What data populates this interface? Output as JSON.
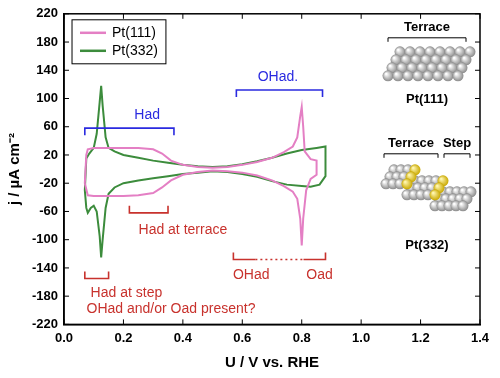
{
  "chart_data": {
    "type": "line",
    "x_label": "U / V vs. RHE",
    "y_label": "j / µA cm⁻²",
    "xlim": [
      0,
      1.4
    ],
    "xticks": [
      {
        "value": 0,
        "label": "0.0"
      },
      0.2,
      0.4,
      0.6,
      0.8,
      {
        "value": 1,
        "label": "1.0"
      },
      1.2,
      1.4
    ],
    "ylim": [
      -220,
      220
    ],
    "yticks": [
      -220,
      -180,
      -140,
      -100,
      -60,
      -20,
      20,
      60,
      100,
      140,
      180,
      220
    ],
    "grid": false,
    "legend": "upper left",
    "series": [
      {
        "name": "Pt(111)",
        "color": "#e47fc4",
        "x": [
          0.07,
          0.075,
          0.08,
          0.1,
          0.15,
          0.2,
          0.25,
          0.3,
          0.33,
          0.36,
          0.4,
          0.45,
          0.5,
          0.55,
          0.6,
          0.65,
          0.7,
          0.74,
          0.77,
          0.785,
          0.795,
          0.8,
          0.805,
          0.81,
          0.83,
          0.85,
          0.85,
          0.83,
          0.815,
          0.805,
          0.8,
          0.795,
          0.785,
          0.77,
          0.74,
          0.7,
          0.65,
          0.6,
          0.55,
          0.5,
          0.45,
          0.4,
          0.36,
          0.33,
          0.3,
          0.25,
          0.2,
          0.15,
          0.1,
          0.08,
          0.07
        ],
        "values": [
          -20,
          20,
          28,
          30,
          30,
          30,
          30,
          28,
          22,
          12,
          6,
          3,
          2,
          3,
          6,
          10,
          16,
          24,
          32,
          45,
          75,
          88,
          60,
          25,
          14,
          12,
          -8,
          -14,
          -30,
          -70,
          -108,
          -70,
          -42,
          -32,
          -24,
          -16,
          -9,
          -5,
          -3,
          -2,
          -4,
          -8,
          -16,
          -26,
          -34,
          -37,
          -38,
          -38,
          -38,
          -37,
          -20
        ]
      },
      {
        "name": "Pt(332)",
        "color": "#3c8c3c",
        "x": [
          0.07,
          0.075,
          0.085,
          0.1,
          0.11,
          0.12,
          0.125,
          0.13,
          0.14,
          0.15,
          0.17,
          0.2,
          0.25,
          0.3,
          0.35,
          0.4,
          0.45,
          0.5,
          0.55,
          0.6,
          0.65,
          0.7,
          0.75,
          0.8,
          0.85,
          0.88,
          0.88,
          0.86,
          0.83,
          0.8,
          0.75,
          0.7,
          0.65,
          0.6,
          0.55,
          0.5,
          0.45,
          0.4,
          0.35,
          0.3,
          0.25,
          0.2,
          0.17,
          0.15,
          0.14,
          0.13,
          0.125,
          0.12,
          0.11,
          0.1,
          0.09,
          0.08,
          0.075,
          0.07
        ],
        "values": [
          -30,
          15,
          22,
          30,
          50,
          95,
          118,
          90,
          45,
          30,
          25,
          20,
          16,
          12,
          9,
          6,
          4,
          3,
          4,
          7,
          11,
          16,
          22,
          27,
          30,
          32,
          -10,
          -22,
          -25,
          -24,
          -22,
          -17,
          -11,
          -7,
          -4,
          -3,
          -5,
          -7,
          -10,
          -13,
          -16,
          -20,
          -26,
          -35,
          -55,
          -100,
          -125,
          -95,
          -60,
          -52,
          -55,
          -62,
          -55,
          -30
        ]
      }
    ],
    "brackets": [
      {
        "color": "#2a2ae0",
        "x_range": [
          0.07,
          0.37
        ],
        "y": 58
      },
      {
        "color": "#2a2ae0",
        "x_range": [
          0.58,
          0.87
        ],
        "y": 112
      },
      {
        "color": "#c8322d",
        "x_range": [
          0.22,
          0.35
        ],
        "y": -62
      },
      {
        "color": "#c8322d",
        "x_range": [
          0.07,
          0.15
        ],
        "y": -155
      },
      {
        "color": "#c8322d",
        "x_range": [
          0.57,
          0.88
        ],
        "y": -128,
        "line_style": "dotted"
      }
    ],
    "annotations": [
      {
        "text": "Had",
        "color": "#2a2ae0",
        "x": 0.28,
        "y": 76
      },
      {
        "text": "OHad.",
        "color": "#2a2ae0",
        "x": 0.72,
        "y": 130
      },
      {
        "text": "Had at terrace",
        "color": "#c8322d",
        "x": 0.4,
        "y": -86
      },
      {
        "text": "Had at step",
        "color": "#c8322d",
        "x": 0.21,
        "y": -176
      },
      {
        "text": "OHad and/or Oad present?",
        "color": "#c8322d",
        "x": 0.36,
        "y": -198
      },
      {
        "text": "OHad",
        "color": "#c8322d",
        "x": 0.63,
        "y": -150
      },
      {
        "text": "Oad",
        "color": "#c8322d",
        "x": 0.86,
        "y": -150
      }
    ],
    "diagrams": [
      {
        "title": "Pt(111)",
        "labels": [
          "Terrace"
        ]
      },
      {
        "title": "Pt(332)",
        "labels": [
          "Terrace",
          "Step"
        ]
      }
    ]
  }
}
